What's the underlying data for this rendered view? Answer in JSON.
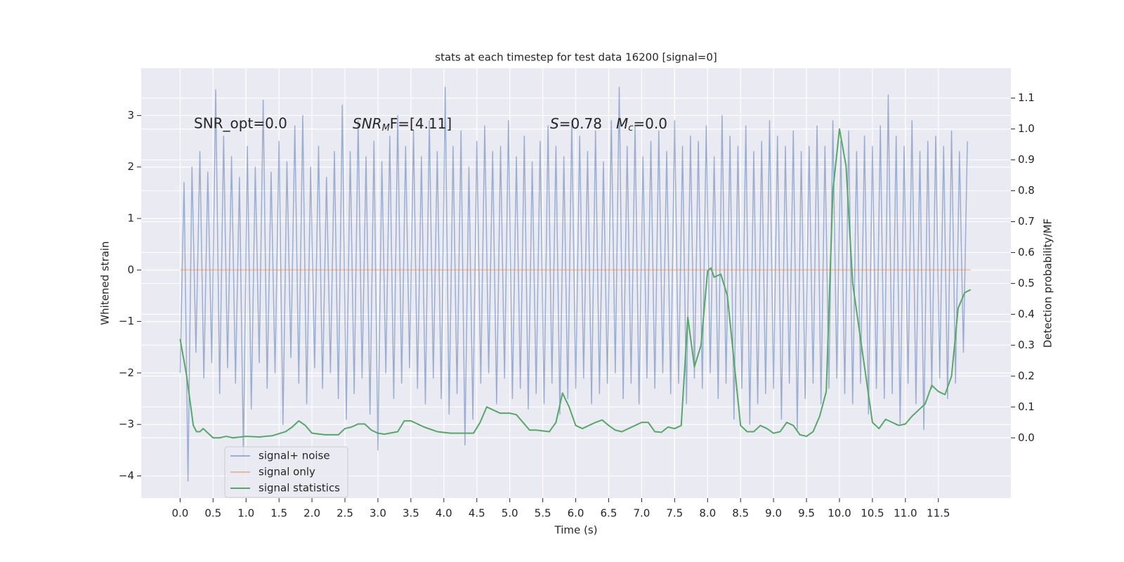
{
  "chart_data": {
    "type": "line",
    "title": "stats at each timestep for test data 16200 [signal=0]",
    "x_label": "Time (s)",
    "y_label": "Whitened strain",
    "y2_label": "Detection probability/MF",
    "xlim": [
      -0.59,
      12.6
    ],
    "ylim": [
      -4.43,
      3.92
    ],
    "y2lim": [
      -0.195,
      1.197
    ],
    "grid": true,
    "legend": "lower left",
    "xticks": [
      {
        "value": 0,
        "label": "0.0"
      },
      {
        "value": 0.5,
        "label": "0.5"
      },
      {
        "value": 1,
        "label": "1.0"
      },
      {
        "value": 1.5,
        "label": "1.5"
      },
      {
        "value": 2,
        "label": "2.0"
      },
      {
        "value": 2.5,
        "label": "2.5"
      },
      {
        "value": 3,
        "label": "3.0"
      },
      {
        "value": 3.5,
        "label": "3.5"
      },
      {
        "value": 4,
        "label": "4.0"
      },
      {
        "value": 4.5,
        "label": "4.5"
      },
      {
        "value": 5,
        "label": "5.0"
      },
      {
        "value": 5.5,
        "label": "5.5"
      },
      {
        "value": 6,
        "label": "6.0"
      },
      {
        "value": 6.5,
        "label": "6.5"
      },
      {
        "value": 7,
        "label": "7.0"
      },
      {
        "value": 7.5,
        "label": "7.5"
      },
      {
        "value": 8,
        "label": "8.0"
      },
      {
        "value": 8.5,
        "label": "8.5"
      },
      {
        "value": 9,
        "label": "9.0"
      },
      {
        "value": 9.5,
        "label": "9.5"
      },
      {
        "value": 10,
        "label": "10.0"
      },
      {
        "value": 10.5,
        "label": "10.5"
      },
      {
        "value": 11,
        "label": "11.0"
      },
      {
        "value": 11.5,
        "label": "11.5"
      }
    ],
    "yticks": [
      {
        "value": -4,
        "label": "−4"
      },
      {
        "value": -3,
        "label": "−3"
      },
      {
        "value": -2,
        "label": "−2"
      },
      {
        "value": -1,
        "label": "−1"
      },
      0,
      1,
      2,
      3
    ],
    "y2ticks": [
      {
        "value": 0,
        "label": "0.0"
      },
      {
        "value": 0.1,
        "label": "0.1"
      },
      {
        "value": 0.2,
        "label": "0.2"
      },
      {
        "value": 0.3,
        "label": "0.3"
      },
      {
        "value": 0.4,
        "label": "0.4"
      },
      {
        "value": 0.5,
        "label": "0.5"
      },
      {
        "value": 0.6,
        "label": "0.6"
      },
      {
        "value": 0.7,
        "label": "0.7"
      },
      {
        "value": 0.8,
        "label": "0.8"
      },
      {
        "value": 0.9,
        "label": "0.9"
      },
      {
        "value": 1,
        "label": "1.0"
      },
      {
        "value": 1.1,
        "label": "1.1"
      }
    ],
    "annotations": [
      [
        "SNR_opt=0.0"
      ],
      [
        "SNR",
        "M",
        "F=[4.11]"
      ],
      [
        "S",
        "=0.78"
      ],
      [
        "M",
        "c",
        "=0.0"
      ]
    ],
    "series": [
      {
        "name": "signal+ noise",
        "color": "#4c72b0",
        "opacity": 0.5,
        "x": [
          0,
          0.06,
          0.12,
          0.18,
          0.24,
          0.3,
          0.36,
          0.42,
          0.48,
          0.54,
          0.6,
          0.66,
          0.72,
          0.78,
          0.84,
          0.9,
          0.96,
          1.02,
          1.08,
          1.14,
          1.2,
          1.26,
          1.32,
          1.38,
          1.44,
          1.5,
          1.56,
          1.62,
          1.68,
          1.74,
          1.8,
          1.86,
          1.92,
          1.98,
          2.04,
          2.1,
          2.16,
          2.22,
          2.28,
          2.34,
          2.4,
          2.46,
          2.52,
          2.58,
          2.64,
          2.7,
          2.76,
          2.82,
          2.88,
          2.94,
          3,
          3.06,
          3.12,
          3.18,
          3.24,
          3.3,
          3.36,
          3.42,
          3.48,
          3.54,
          3.6,
          3.66,
          3.72,
          3.78,
          3.84,
          3.9,
          3.96,
          4.02,
          4.08,
          4.14,
          4.2,
          4.26,
          4.32,
          4.38,
          4.44,
          4.5,
          4.56,
          4.62,
          4.68,
          4.74,
          4.8,
          4.86,
          4.92,
          4.98,
          5.04,
          5.1,
          5.16,
          5.22,
          5.28,
          5.34,
          5.4,
          5.46,
          5.52,
          5.58,
          5.64,
          5.7,
          5.76,
          5.82,
          5.88,
          5.94,
          6,
          6.06,
          6.12,
          6.18,
          6.24,
          6.3,
          6.36,
          6.42,
          6.48,
          6.54,
          6.6,
          6.66,
          6.72,
          6.78,
          6.84,
          6.9,
          6.96,
          7.02,
          7.08,
          7.14,
          7.2,
          7.26,
          7.32,
          7.38,
          7.44,
          7.5,
          7.56,
          7.62,
          7.68,
          7.74,
          7.8,
          7.86,
          7.92,
          7.98,
          8.04,
          8.1,
          8.16,
          8.22,
          8.28,
          8.34,
          8.4,
          8.46,
          8.52,
          8.58,
          8.64,
          8.7,
          8.76,
          8.82,
          8.88,
          8.94,
          9,
          9.06,
          9.12,
          9.18,
          9.24,
          9.3,
          9.36,
          9.42,
          9.48,
          9.54,
          9.6,
          9.66,
          9.72,
          9.78,
          9.84,
          9.9,
          9.96,
          10.02,
          10.08,
          10.14,
          10.2,
          10.26,
          10.32,
          10.38,
          10.44,
          10.5,
          10.56,
          10.62,
          10.68,
          10.74,
          10.8,
          10.86,
          10.92,
          10.98,
          11.04,
          11.1,
          11.16,
          11.22,
          11.28,
          11.34,
          11.4,
          11.46,
          11.52,
          11.58,
          11.64,
          11.7,
          11.76,
          11.82,
          11.88,
          11.94
        ],
        "values": [
          -2.0,
          1.7,
          -4.1,
          2.0,
          -1.6,
          2.3,
          -2.1,
          1.9,
          -1.8,
          3.5,
          -2.4,
          2.6,
          -1.9,
          2.2,
          -2.2,
          1.8,
          -3.6,
          2.4,
          -2.7,
          2.0,
          -1.8,
          3.3,
          -2.3,
          1.9,
          -2.0,
          2.5,
          -3.0,
          2.1,
          -1.7,
          2.8,
          -2.2,
          3.0,
          -2.6,
          2.0,
          -1.9,
          2.4,
          -2.3,
          1.8,
          -2.0,
          2.3,
          -2.5,
          3.2,
          -2.9,
          2.3,
          -2.4,
          2.9,
          -2.1,
          2.2,
          -2.8,
          2.5,
          -3.5,
          2.1,
          -2.0,
          2.6,
          -2.5,
          3.0,
          -2.2,
          2.4,
          -1.9,
          2.7,
          -2.3,
          2.2,
          -2.6,
          2.9,
          -2.1,
          2.3,
          -2.5,
          3.55,
          -2.8,
          2.4,
          -2.4,
          2.7,
          -3.4,
          2.0,
          -2.9,
          2.5,
          -2.2,
          2.8,
          -2.0,
          2.3,
          -2.6,
          2.4,
          -2.1,
          2.9,
          -2.5,
          2.2,
          -2.3,
          2.6,
          -2.7,
          2.1,
          -2.4,
          2.5,
          -2.6,
          2.8,
          -2.2,
          2.4,
          -2.8,
          2.2,
          -2.5,
          2.9,
          -2.3,
          2.6,
          -2.1,
          2.3,
          -2.6,
          2.7,
          -2.4,
          2.1,
          -2.2,
          2.9,
          -2.0,
          3.55,
          -2.5,
          2.4,
          -2.2,
          2.8,
          -2.6,
          2.2,
          -2.1,
          2.5,
          -2.3,
          2.7,
          -2.0,
          2.3,
          -2.4,
          2.9,
          -2.2,
          2.4,
          -2.6,
          2.6,
          -2.1,
          2.5,
          -2.3,
          2.8,
          -2.0,
          2.2,
          -2.5,
          3.0,
          -2.2,
          2.6,
          -2.9,
          2.4,
          -2.3,
          2.8,
          -3.0,
          2.3,
          -2.6,
          2.5,
          -2.4,
          2.9,
          -2.3,
          2.6,
          -2.9,
          2.4,
          -2.2,
          2.7,
          -3.1,
          2.3,
          -2.5,
          2.4,
          -2.2,
          2.8,
          -2.6,
          2.4,
          -2.3,
          2.9,
          -2.1,
          2.5,
          -2.4,
          2.7,
          -2.6,
          2.3,
          -2.2,
          2.6,
          -2.8,
          2.4,
          -2.3,
          2.8,
          -2.5,
          3.4,
          -2.4,
          2.6,
          -3.0,
          2.4,
          -2.2,
          2.9,
          -2.6,
          2.3,
          -3.1,
          2.5,
          -2.3,
          2.6,
          -2.1,
          2.4,
          -2.5,
          2.7,
          -2.2,
          2.3,
          -1.6,
          2.5
        ]
      },
      {
        "name": "signal only",
        "color": "#dd8452",
        "opacity": 0.5,
        "x": [
          0,
          11.99
        ],
        "values": [
          0,
          0
        ]
      },
      {
        "name": "signal statistics",
        "color": "#55a868",
        "opacity": 1,
        "axis": "y2",
        "x": [
          0,
          0.1,
          0.2,
          0.25,
          0.3,
          0.35,
          0.4,
          0.5,
          0.6,
          0.7,
          0.8,
          1.0,
          1.2,
          1.4,
          1.6,
          1.7,
          1.8,
          1.9,
          2.0,
          2.2,
          2.4,
          2.5,
          2.6,
          2.7,
          2.8,
          2.9,
          3.0,
          3.1,
          3.3,
          3.4,
          3.5,
          3.7,
          3.9,
          4.1,
          4.3,
          4.45,
          4.55,
          4.65,
          4.75,
          4.85,
          5.0,
          5.1,
          5.2,
          5.3,
          5.4,
          5.6,
          5.7,
          5.8,
          5.9,
          6.0,
          6.1,
          6.3,
          6.4,
          6.5,
          6.6,
          6.7,
          6.8,
          7.0,
          7.1,
          7.2,
          7.3,
          7.4,
          7.5,
          7.6,
          7.7,
          7.8,
          7.9,
          8.0,
          8.05,
          8.1,
          8.2,
          8.3,
          8.4,
          8.5,
          8.6,
          8.7,
          8.8,
          8.9,
          9.0,
          9.1,
          9.2,
          9.3,
          9.4,
          9.5,
          9.6,
          9.7,
          9.8,
          9.9,
          10.0,
          10.1,
          10.2,
          10.3,
          10.4,
          10.5,
          10.6,
          10.7,
          10.8,
          10.9,
          11.0,
          11.1,
          11.2,
          11.3,
          11.4,
          11.5,
          11.6,
          11.7,
          11.8,
          11.9,
          11.99
        ],
        "values": [
          0.32,
          0.2,
          0.04,
          0.02,
          0.02,
          0.03,
          0.02,
          0.0,
          0.0,
          0.005,
          0.0,
          0.005,
          0.003,
          0.007,
          0.02,
          0.035,
          0.055,
          0.04,
          0.015,
          0.01,
          0.01,
          0.03,
          0.035,
          0.045,
          0.045,
          0.025,
          0.015,
          0.012,
          0.02,
          0.055,
          0.055,
          0.035,
          0.02,
          0.015,
          0.015,
          0.015,
          0.05,
          0.1,
          0.09,
          0.08,
          0.08,
          0.075,
          0.05,
          0.025,
          0.025,
          0.02,
          0.05,
          0.145,
          0.1,
          0.04,
          0.03,
          0.05,
          0.058,
          0.04,
          0.025,
          0.02,
          0.03,
          0.05,
          0.05,
          0.02,
          0.018,
          0.035,
          0.03,
          0.04,
          0.39,
          0.23,
          0.3,
          0.54,
          0.55,
          0.52,
          0.53,
          0.46,
          0.25,
          0.04,
          0.02,
          0.02,
          0.04,
          0.03,
          0.015,
          0.02,
          0.05,
          0.04,
          0.01,
          0.005,
          0.02,
          0.07,
          0.15,
          0.8,
          1.0,
          0.88,
          0.5,
          0.35,
          0.2,
          0.05,
          0.03,
          0.06,
          0.05,
          0.04,
          0.045,
          0.07,
          0.09,
          0.11,
          0.17,
          0.15,
          0.14,
          0.2,
          0.42,
          0.47,
          0.48
        ]
      }
    ]
  }
}
